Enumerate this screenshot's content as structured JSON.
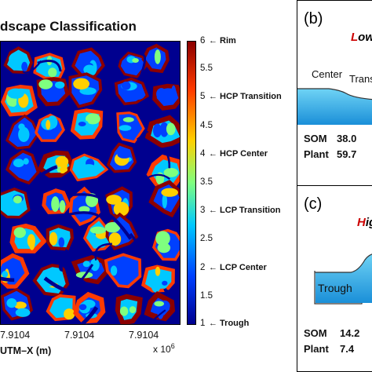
{
  "figure": {
    "left_title": "dscape Classification",
    "x_axis_label": "UTM–X (m)",
    "x_exponent_prefix": "x 10",
    "x_exponent_power": "6",
    "x_ticks": [
      "7.9104",
      "7.9104",
      "7.9104"
    ]
  },
  "chart_data": {
    "type": "heatmap",
    "title": "dscape Classification",
    "xlabel": "UTM–X (m)",
    "colorbar": {
      "range": [
        1,
        6
      ],
      "ticks": [
        "6",
        "5.5",
        "5",
        "4.5",
        "4",
        "3.5",
        "3",
        "2.5",
        "2",
        "1.5",
        "1"
      ],
      "class_labels": [
        {
          "value": 6,
          "label": "Rim"
        },
        {
          "value": 5,
          "label": "HCP Transition"
        },
        {
          "value": 4,
          "label": "HCP Center"
        },
        {
          "value": 3,
          "label": "LCP Transition"
        },
        {
          "value": 2,
          "label": "LCP Center"
        },
        {
          "value": 1,
          "label": "Trough"
        }
      ],
      "colors": [
        "#00008f",
        "#0040ff",
        "#00c8ff",
        "#7fff7f",
        "#ffd000",
        "#ff3a00",
        "#8b0000"
      ]
    }
  },
  "panels": {
    "b": {
      "letter": "(b)",
      "title": "Low",
      "title_first_color": "#cc0000",
      "title_rest_color": "#000000",
      "profile_labels": [
        "Center",
        "Transi"
      ],
      "stats": [
        {
          "name": "SOM",
          "value": "38.0"
        },
        {
          "name": "Plant",
          "value": "59.7"
        }
      ]
    },
    "c": {
      "letter": "(c)",
      "title": "Hig",
      "title_first_color": "#cc0000",
      "title_rest_color": "#000000",
      "profile_labels": [
        "Trough"
      ],
      "stats": [
        {
          "name": "SOM",
          "value": "14.2"
        },
        {
          "name": "Plant",
          "value": "7.4"
        }
      ]
    }
  }
}
